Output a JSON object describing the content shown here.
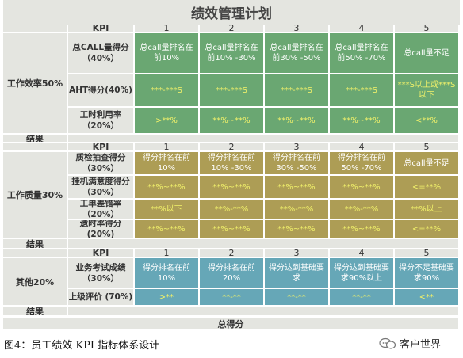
{
  "title": "绩效管理计划",
  "kpi_label": "KPI",
  "levels": [
    "1",
    "2",
    "3",
    "4",
    "5"
  ],
  "sections": [
    {
      "name": "工作效率50%",
      "result_label": "结果",
      "rows": [
        {
          "label": "总CALL量得分（40%）",
          "cells": [
            "总call量排名在前10%",
            "总call量排名在前10% -30%",
            "总call量排名在前30% -50%",
            "总call量排名在前50% -70%",
            "总call量不足"
          ],
          "text_color": "white"
        },
        {
          "label": "AHT得分(40%)",
          "cells": [
            "***-***S",
            "***-***S",
            "***-***S",
            "***-***S",
            "***S以上或***S以下"
          ],
          "text_color": "yellow"
        },
        {
          "label": "工时利用率（20%）",
          "cells": [
            ">**%",
            "**%~**%",
            "**%~**%",
            "**%~**%",
            "<**%"
          ],
          "text_color": "yellow"
        }
      ]
    },
    {
      "name": "工作质量30%",
      "result_label": "结果",
      "rows": [
        {
          "label": "质检抽查得分（30%）",
          "cells": [
            "得分排名在前10%",
            "得分排名在前10% -30%",
            "得分排名在前30% -50%",
            "得分排名在前50% -70%",
            "总call量不足"
          ],
          "text_color": "white"
        },
        {
          "label": "挂机满意度得分（30%）",
          "cells": [
            "**%~**%",
            "**%~**%",
            "**%~**%",
            "**%~**%",
            "<=**%"
          ],
          "text_color": "yellow"
        },
        {
          "label": "工单差错率（20%）",
          "cells": [
            "**%以下",
            "**%-**%",
            "**%-**%",
            "**%-**%",
            "**%以上"
          ],
          "text_color": "yellow"
        },
        {
          "label": "遗时率得分(20%)",
          "cells": [
            "**%~**%",
            "**%~**%",
            "**%~**%",
            "**%~**%",
            "<=**%"
          ],
          "text_color": "yellow"
        }
      ]
    },
    {
      "name": "其他20%",
      "result_label": "结果",
      "rows": [
        {
          "label": "业务考试成绩（30%）",
          "cells": [
            "得分排名在前10%",
            "得分排名在前20%",
            "得分达到基础要求",
            "得分达到基础要求90%以上",
            "得分不足基础要求90%"
          ],
          "text_color": "white"
        },
        {
          "label": "上级评价 (70%)",
          "cells": [
            ">**",
            "**-**",
            "**-**",
            "**-**",
            "<**"
          ],
          "text_color": "yellow"
        }
      ]
    }
  ],
  "total_label": "总得分",
  "caption": "图4：员工绩效 KPI 指标体系设计",
  "brand": "客户世界",
  "colors": {
    "efficiency": "#6aa772",
    "quality": "#ad9d55",
    "other": "#66a7b7",
    "label_bg": "#e4e5e0",
    "highlight_text": "#f1f16a"
  },
  "icons": {
    "brand": "speech-bubble-icon"
  }
}
